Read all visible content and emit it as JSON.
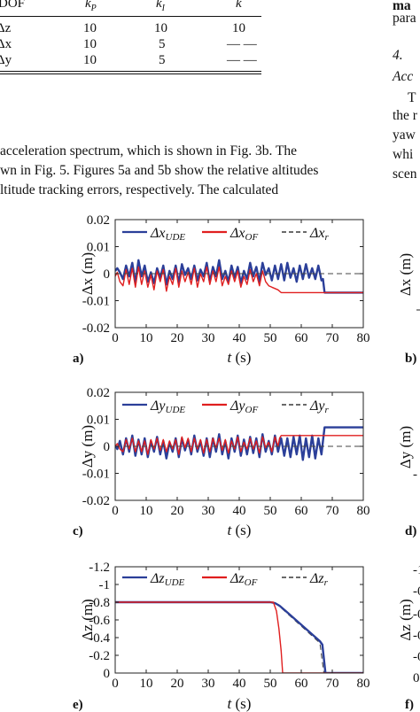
{
  "table": {
    "headers": [
      "DOF",
      "k",
      "k",
      "k"
    ],
    "header_subscripts": [
      "",
      "P",
      "I",
      ""
    ],
    "rows": [
      {
        "dof": "Δz",
        "kp": "10",
        "ki": "10",
        "k": "10"
      },
      {
        "dof": "Δx",
        "kp": "10",
        "ki": "5",
        "k": "— —"
      },
      {
        "dof": "Δy",
        "kp": "10",
        "ki": "5",
        "k": "— —"
      }
    ]
  },
  "text": {
    "line1": "acceleration spectrum, which is shown in Fig. 3b. The",
    "line2": "wn in Fig. 5. Figures 5a and 5b show the relative altitudes",
    "line3": "ltitude  tracking  errors,  respectively.  The  calculated"
  },
  "right_column": {
    "l1": "ma",
    "l2": "para",
    "l3": "4.",
    "l4": "Acc",
    "l5": "T",
    "l6": "the r",
    "l7": "yaw",
    "l8": "whi",
    "l9": "scen"
  },
  "chart_data": [
    {
      "type": "line",
      "panel_label": "a)",
      "xlabel_var": "t",
      "xlabel_unit": "(s)",
      "ylabel": "Δx (m)",
      "xlim": [
        0,
        80
      ],
      "ylim": [
        -0.02,
        0.02
      ],
      "xticks": [
        "0",
        "10",
        "20",
        "30",
        "40",
        "50",
        "60",
        "70",
        "80"
      ],
      "yticks": [
        "0.02",
        "0.01",
        "0",
        "-0.01",
        "-0.02"
      ],
      "legend": [
        {
          "base": "Δx",
          "sub": "UDE",
          "color": "#2b3f99",
          "style": "solid"
        },
        {
          "base": "Δx",
          "sub": "OF",
          "color": "#e01f1f",
          "style": "solid"
        },
        {
          "base": "Δx",
          "sub": "r",
          "color": "#111111",
          "style": "dashed"
        }
      ],
      "series": [
        {
          "color": "#2b3f99",
          "width": 2.4,
          "x": [
            0,
            0.7,
            1.5,
            2.5,
            3.5,
            4.5,
            5.5,
            6.5,
            7.5,
            8.5,
            9.5,
            10.5,
            11.5,
            12.5,
            13.5,
            14.5,
            15.5,
            16.5,
            17.5,
            18.5,
            19.5,
            20.5,
            21.5,
            22.5,
            23.5,
            24.5,
            25.5,
            26.5,
            27.5,
            28.5,
            29.5,
            30.5,
            31.5,
            32.5,
            33.5,
            34.5,
            35.5,
            36.5,
            37.5,
            38.5,
            39.5,
            40.5,
            41.5,
            42.5,
            43.5,
            44.5,
            45.5,
            46.5,
            47.5,
            48.5,
            49.5,
            50.5,
            51.5,
            52.5,
            53.5,
            54.5,
            55.5,
            56.5,
            57.5,
            58.5,
            59.5,
            60.5,
            61.5,
            62.5,
            63.5,
            64.5,
            65.5,
            66.5,
            67,
            67.5,
            80
          ],
          "y": [
            0.001,
            0.002,
            0.0005,
            -0.002,
            0.003,
            -0.001,
            0.004,
            -0.0035,
            0.005,
            -0.001,
            0.003,
            -0.003,
            0.0005,
            -0.0035,
            0.002,
            -0.0015,
            0.003,
            -0.004,
            0.001,
            -0.002,
            0.003,
            -0.0035,
            0.0035,
            -0.0005,
            0.002,
            -0.002,
            0.003,
            -0.0025,
            0.0015,
            -0.001,
            0.004,
            -0.003,
            0.0025,
            -0.001,
            0.005,
            -0.002,
            0.001,
            -0.003,
            0.003,
            -0.0015,
            0.0025,
            -0.0035,
            0.001,
            -0.002,
            0.004,
            -0.001,
            0.0025,
            -0.003,
            0.004,
            -0.0005,
            0.002,
            -0.0025,
            0.003,
            -0.002,
            0.0035,
            -0.0025,
            0.004,
            -0.0015,
            0.002,
            -0.003,
            0.003,
            -0.002,
            0.0035,
            -0.0015,
            0.002,
            -0.002,
            0.003,
            -0.0025,
            -0.002,
            -0.007,
            -0.007
          ]
        },
        {
          "color": "#e01f1f",
          "width": 1.4,
          "x": [
            0,
            0.7,
            1.5,
            2.5,
            3.5,
            4.5,
            5.5,
            6.5,
            7.5,
            8.5,
            9.5,
            10.5,
            11.5,
            12.5,
            13.5,
            14.5,
            15.5,
            16.5,
            17.5,
            18.5,
            19.5,
            20.5,
            21.5,
            22.5,
            23.5,
            24.5,
            25.5,
            26.5,
            27.5,
            28.5,
            29.5,
            30.5,
            31.5,
            32.5,
            33.5,
            34.5,
            35.5,
            36.5,
            37.5,
            38.5,
            39.5,
            40.5,
            41.5,
            42.5,
            43.5,
            44.5,
            45.5,
            46.5,
            47.5,
            48.5,
            49.5,
            50.5,
            51.5,
            52.5,
            53.5,
            80
          ],
          "y": [
            -0.001,
            0.0005,
            -0.003,
            -0.0045,
            0.0015,
            -0.004,
            0.002,
            -0.005,
            0.0025,
            -0.004,
            0.001,
            -0.005,
            -0.0005,
            -0.006,
            0.001,
            -0.003,
            0.0015,
            -0.0065,
            -0.001,
            -0.004,
            0.002,
            -0.005,
            0.001,
            -0.003,
            0.0005,
            -0.004,
            0.002,
            -0.005,
            0.0,
            -0.003,
            0.0025,
            -0.004,
            0.001,
            -0.003,
            0.0025,
            -0.0045,
            -0.001,
            -0.004,
            0.001,
            -0.003,
            0.001,
            -0.005,
            -0.001,
            -0.004,
            0.0015,
            -0.003,
            0.0,
            -0.0045,
            0.001,
            -0.003,
            -0.0045,
            -0.005,
            -0.0055,
            -0.006,
            -0.007,
            -0.007
          ]
        },
        {
          "color": "#444444",
          "width": 1.1,
          "dashed": true,
          "x": [
            0,
            80
          ],
          "y": [
            0,
            0
          ]
        }
      ]
    },
    {
      "type": "line",
      "panel_label": "c)",
      "xlabel_var": "t",
      "xlabel_unit": "(s)",
      "ylabel": "Δy (m)",
      "xlim": [
        0,
        80
      ],
      "ylim": [
        -0.02,
        0.02
      ],
      "xticks": [
        "0",
        "10",
        "20",
        "30",
        "40",
        "50",
        "60",
        "70",
        "80"
      ],
      "yticks": [
        "0.02",
        "0.01",
        "0",
        "-0.01",
        "-0.02"
      ],
      "legend": [
        {
          "base": "Δy",
          "sub": "UDE",
          "color": "#2b3f99",
          "style": "solid"
        },
        {
          "base": "Δy",
          "sub": "OF",
          "color": "#e01f1f",
          "style": "solid"
        },
        {
          "base": "Δy",
          "sub": "r",
          "color": "#111111",
          "style": "dashed"
        }
      ],
      "series": [
        {
          "color": "#2b3f99",
          "width": 2.4,
          "x": [
            0,
            0.7,
            1.5,
            2.5,
            3.5,
            4.5,
            5.5,
            6.5,
            7.5,
            8.5,
            9.5,
            10.5,
            11.5,
            12.5,
            13.5,
            14.5,
            15.5,
            16.5,
            17.5,
            18.5,
            19.5,
            20.5,
            21.5,
            22.5,
            23.5,
            24.5,
            25.5,
            26.5,
            27.5,
            28.5,
            29.5,
            30.5,
            31.5,
            32.5,
            33.5,
            34.5,
            35.5,
            36.5,
            37.5,
            38.5,
            39.5,
            40.5,
            41.5,
            42.5,
            43.5,
            44.5,
            45.5,
            46.5,
            47.5,
            48.5,
            49.5,
            50.5,
            51.5,
            52.5,
            53.5,
            54.5,
            55.5,
            56.5,
            57.5,
            58.5,
            59.5,
            60.5,
            61.5,
            62.5,
            63.5,
            64.5,
            65.5,
            66.5,
            67,
            67.5,
            80
          ],
          "y": [
            0.0005,
            -0.001,
            0.002,
            -0.003,
            0.003,
            -0.002,
            0.004,
            -0.0035,
            0.0025,
            -0.003,
            0.003,
            -0.004,
            0.002,
            -0.002,
            0.0035,
            -0.003,
            0.002,
            -0.0045,
            0.0015,
            -0.002,
            0.003,
            -0.004,
            0.003,
            -0.0015,
            0.0025,
            -0.003,
            0.004,
            -0.002,
            0.002,
            -0.0035,
            0.003,
            -0.004,
            0.003,
            -0.002,
            0.0045,
            -0.003,
            0.002,
            -0.0045,
            0.003,
            -0.002,
            0.004,
            -0.0035,
            0.0025,
            -0.003,
            0.0035,
            -0.0025,
            0.003,
            -0.004,
            0.0045,
            -0.002,
            0.002,
            -0.003,
            0.004,
            -0.002,
            0.003,
            -0.0035,
            0.003,
            -0.004,
            0.0035,
            -0.003,
            0.004,
            -0.005,
            0.003,
            -0.004,
            0.004,
            -0.0045,
            0.003,
            -0.003,
            0.002,
            0.007,
            0.007
          ]
        },
        {
          "color": "#e01f1f",
          "width": 1.4,
          "x": [
            0,
            0.7,
            1.5,
            2.5,
            3.5,
            4.5,
            5.5,
            6.5,
            7.5,
            8.5,
            9.5,
            10.5,
            11.5,
            12.5,
            13.5,
            14.5,
            15.5,
            16.5,
            17.5,
            18.5,
            19.5,
            20.5,
            21.5,
            22.5,
            23.5,
            24.5,
            25.5,
            26.5,
            27.5,
            28.5,
            29.5,
            30.5,
            31.5,
            32.5,
            33.5,
            34.5,
            35.5,
            36.5,
            37.5,
            38.5,
            39.5,
            40.5,
            41.5,
            42.5,
            43.5,
            44.5,
            45.5,
            46.5,
            47.5,
            48.5,
            49.5,
            50.5,
            51.5,
            52.5,
            53,
            53.5,
            80
          ],
          "y": [
            0.0,
            0.001,
            -0.001,
            -0.002,
            0.0025,
            -0.001,
            0.003,
            -0.002,
            0.002,
            -0.002,
            0.002,
            -0.003,
            0.0025,
            -0.001,
            0.003,
            -0.0015,
            0.0025,
            -0.002,
            0.002,
            -0.001,
            0.0025,
            -0.003,
            0.0035,
            -0.0005,
            0.003,
            -0.002,
            0.003,
            -0.001,
            0.0025,
            -0.0025,
            0.0025,
            -0.002,
            0.003,
            -0.0005,
            0.003,
            -0.0015,
            0.0025,
            -0.0025,
            0.002,
            -0.001,
            0.0035,
            -0.002,
            0.0015,
            -0.001,
            0.003,
            -0.001,
            0.002,
            -0.0025,
            0.0035,
            -0.0005,
            0.0015,
            -0.002,
            0.0035,
            0.0,
            0.003,
            0.004,
            0.004
          ]
        },
        {
          "color": "#444444",
          "width": 1.1,
          "dashed": true,
          "x": [
            0,
            80
          ],
          "y": [
            0,
            0
          ]
        }
      ]
    },
    {
      "type": "line",
      "panel_label": "e)",
      "xlabel_var": "t",
      "xlabel_unit": "(s)",
      "ylabel": "Δz (m)",
      "xlim": [
        0,
        80
      ],
      "ylim": [
        -1.2,
        0
      ],
      "y_reversed": true,
      "xticks": [
        "0",
        "10",
        "20",
        "30",
        "40",
        "50",
        "60",
        "70",
        "80"
      ],
      "yticks": [
        "-1.2",
        "-1",
        "-0.8",
        "-0.6",
        "-0.4",
        "-0.2",
        "0"
      ],
      "legend": [
        {
          "base": "Δz",
          "sub": "UDE",
          "color": "#2b3f99",
          "style": "solid"
        },
        {
          "base": "Δz",
          "sub": "OF",
          "color": "#e01f1f",
          "style": "solid"
        },
        {
          "base": "Δz",
          "sub": "r",
          "color": "#111111",
          "style": "dashed"
        }
      ],
      "series": [
        {
          "color": "#444444",
          "width": 1.1,
          "dashed": true,
          "x": [
            0,
            50,
            52,
            54,
            66,
            67.3,
            80
          ],
          "y": [
            -0.8,
            -0.8,
            -0.78,
            -0.72,
            -0.34,
            0,
            0
          ]
        },
        {
          "color": "#2b3f99",
          "width": 2.4,
          "x": [
            0,
            50,
            51.5,
            53,
            55,
            66,
            66.8,
            67.8,
            80
          ],
          "y": [
            -0.8,
            -0.8,
            -0.79,
            -0.76,
            -0.7,
            -0.36,
            -0.32,
            0,
            0
          ]
        },
        {
          "color": "#e01f1f",
          "width": 1.4,
          "x": [
            0,
            51,
            52,
            52.8,
            53.5,
            54,
            80
          ],
          "y": [
            -0.8,
            -0.8,
            -0.7,
            -0.5,
            -0.25,
            0,
            0
          ]
        }
      ]
    },
    {
      "type": "line",
      "panel_label": "b)",
      "ylabel": "Δx (m)"
    },
    {
      "type": "line",
      "panel_label": "d)",
      "ylabel": "Δy (m)",
      "yticks": [
        "-"
      ]
    },
    {
      "type": "line",
      "panel_label": "f)",
      "ylabel": "Δz (m)",
      "yticks": [
        "-1",
        "-0",
        "-0",
        "-0",
        "-0",
        "0"
      ]
    }
  ]
}
